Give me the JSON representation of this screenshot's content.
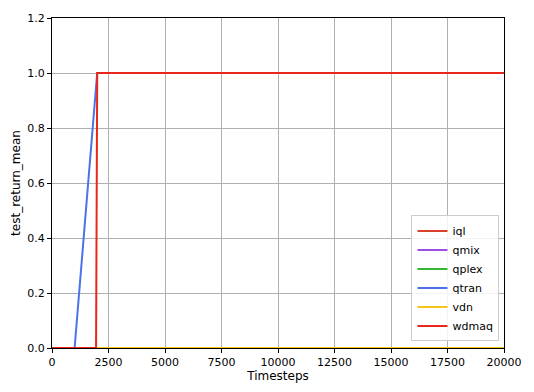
{
  "chart_data": {
    "type": "line",
    "x_label": "Timesteps",
    "y_label": "test_return_mean",
    "xlim": [
      0,
      20000
    ],
    "ylim": [
      0,
      1.2
    ],
    "xticks": [
      0,
      2500,
      5000,
      7500,
      10000,
      12500,
      15000,
      17500,
      20000
    ],
    "yticks": [
      {
        "value": 0,
        "label": "0.0"
      },
      {
        "value": 0.2,
        "label": "0.2"
      },
      {
        "value": 0.4,
        "label": "0.4"
      },
      {
        "value": 0.6,
        "label": "0.6"
      },
      {
        "value": 0.8,
        "label": "0.8"
      },
      {
        "value": 1.0,
        "label": "1.0"
      },
      {
        "value": 1.2,
        "label": "1.2"
      }
    ],
    "grid": true,
    "legend": "lower right",
    "series": [
      {
        "name": "iql",
        "color": "#d9412b",
        "x": [
          0,
          20000
        ],
        "values": [
          0,
          0
        ]
      },
      {
        "name": "qmix",
        "color": "#9b4de8",
        "x": [
          0,
          20000
        ],
        "values": [
          0,
          0
        ]
      },
      {
        "name": "qplex",
        "color": "#33b833",
        "x": [
          0,
          20000
        ],
        "values": [
          0,
          0
        ]
      },
      {
        "name": "qtran",
        "color": "#4c72e8",
        "x": [
          0,
          1000,
          2000,
          20000
        ],
        "values": [
          0,
          0,
          1.0,
          1.0
        ]
      },
      {
        "name": "vdn",
        "color": "#f5c518",
        "x": [
          0,
          20000
        ],
        "values": [
          0,
          0
        ]
      },
      {
        "name": "wdmaq",
        "color": "#e8271a",
        "x": [
          0,
          1950,
          2000,
          20000
        ],
        "values": [
          0,
          0,
          1.0,
          1.0
        ]
      }
    ]
  }
}
